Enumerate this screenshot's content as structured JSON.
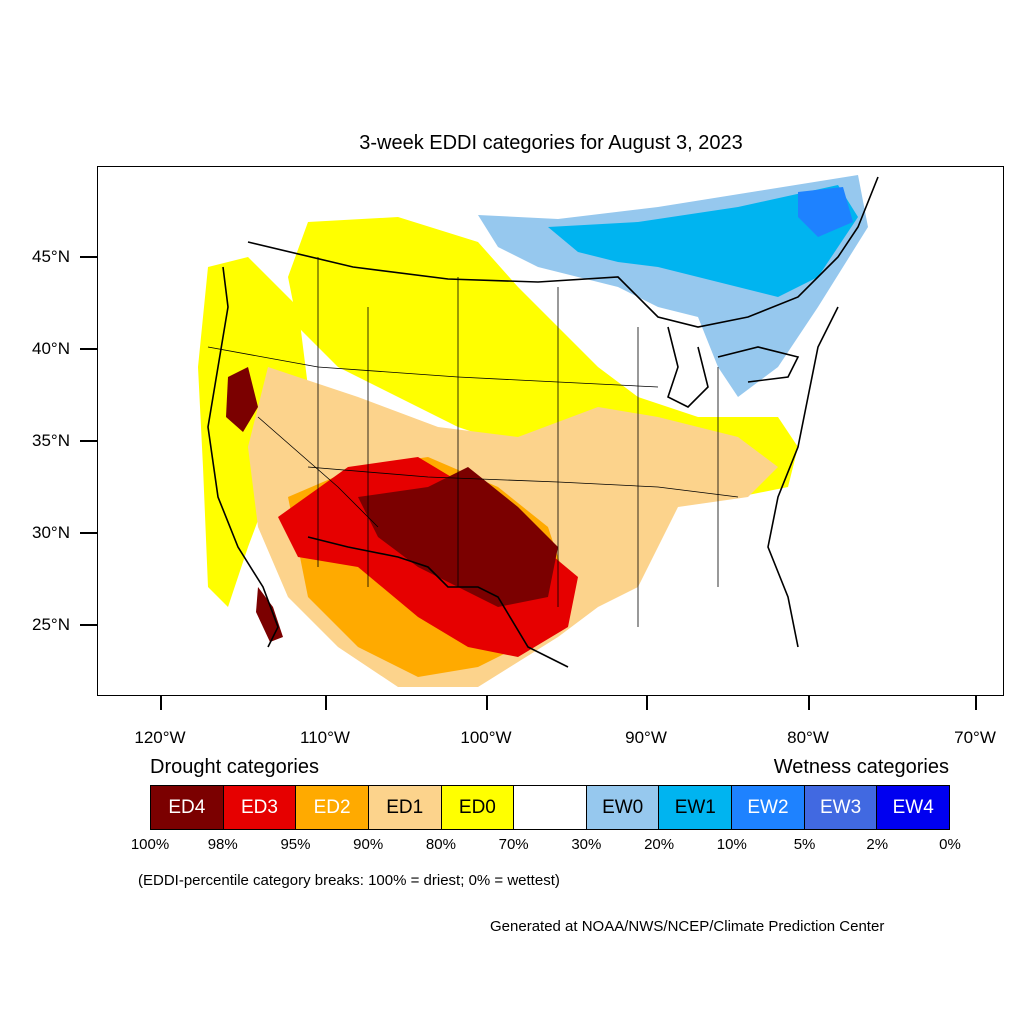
{
  "title": "3-week EDDI categories for August 3, 2023",
  "y_labels": [
    "45°N",
    "40°N",
    "35°N",
    "30°N",
    "25°N"
  ],
  "x_labels": [
    "120°W",
    "110°W",
    "100°W",
    "90°W",
    "80°W",
    "70°W"
  ],
  "legend": {
    "drought_heading": "Drought categories",
    "wetness_heading": "Wetness categories",
    "categories": [
      {
        "label": "ED4",
        "color": "#7b0000",
        "text_color": "#ffffff"
      },
      {
        "label": "ED3",
        "color": "#e60000",
        "text_color": "#ffffff"
      },
      {
        "label": "ED2",
        "color": "#ffaa00",
        "text_color": "#ffffff"
      },
      {
        "label": "ED1",
        "color": "#fcd38c",
        "text_color": "#000000"
      },
      {
        "label": "ED0",
        "color": "#ffff00",
        "text_color": "#000000"
      },
      {
        "label": "",
        "color": "#ffffff",
        "text_color": "#000000"
      },
      {
        "label": "EW0",
        "color": "#96c8ee",
        "text_color": "#000000"
      },
      {
        "label": "EW1",
        "color": "#00b4f0",
        "text_color": "#000000"
      },
      {
        "label": "EW2",
        "color": "#1e82ff",
        "text_color": "#ffffff"
      },
      {
        "label": "EW3",
        "color": "#4169e1",
        "text_color": "#ffffff"
      },
      {
        "label": "EW4",
        "color": "#0000f0",
        "text_color": "#ffffff"
      }
    ],
    "percentiles": [
      "100%",
      "98%",
      "95%",
      "90%",
      "80%",
      "70%",
      "30%",
      "20%",
      "10%",
      "5%",
      "2%",
      "0%"
    ]
  },
  "note": "(EDDI-percentile category breaks: 100% = driest; 0% = wettest)",
  "credit": "Generated at NOAA/NWS/NCEP/Climate Prediction Center",
  "map_regions": [
    {
      "name": "great-lakes-wetness",
      "category": "EW1"
    },
    {
      "name": "southwest-extreme-drought",
      "category": "ED4"
    },
    {
      "name": "texas-extreme-drought",
      "category": "ED4"
    },
    {
      "name": "california-drought",
      "category": "ED4"
    }
  ]
}
